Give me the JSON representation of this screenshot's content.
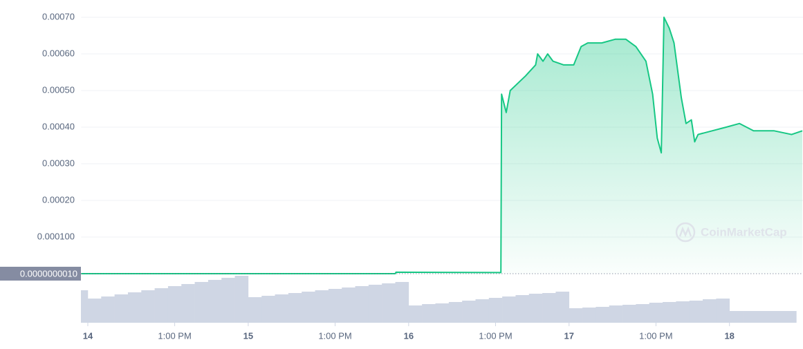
{
  "chart_data": {
    "type": "line",
    "watermark": "CoinMarketCap",
    "xlim": [
      -1,
      107
    ],
    "xticks": [
      {
        "value": 0,
        "label": "14"
      },
      {
        "value": 13,
        "label": "1:00 PM"
      },
      {
        "value": 24,
        "label": "15"
      },
      {
        "value": 37,
        "label": "1:00 PM"
      },
      {
        "value": 48,
        "label": "16"
      },
      {
        "value": 61,
        "label": "1:00 PM"
      },
      {
        "value": 72,
        "label": "17"
      },
      {
        "value": 85,
        "label": "1:00 PM"
      },
      {
        "value": 96,
        "label": "18"
      }
    ],
    "ylim": [
      0,
      0.00075
    ],
    "yticks": [
      {
        "value": 0.0001,
        "label": "0.000100"
      },
      {
        "value": 0.0002,
        "label": "0.00020"
      },
      {
        "value": 0.0003,
        "label": "0.00030"
      },
      {
        "value": 0.0004,
        "label": "0.00040"
      },
      {
        "value": 0.0005,
        "label": "0.00050"
      },
      {
        "value": 0.0006,
        "label": "0.00060"
      },
      {
        "value": 0.0007,
        "label": "0.00070"
      }
    ],
    "y_marker": {
      "value": 1e-09,
      "label": "0.0000000010"
    },
    "grid": true,
    "price": {
      "color": "#16c784",
      "x": [
        -1,
        46,
        46.1,
        61.8,
        61.9,
        62.6,
        63.2,
        65.5,
        67,
        67.3,
        68.1,
        68.8,
        69.6,
        71.2,
        72.7,
        73.8,
        74.8,
        76.9,
        78.9,
        80.5,
        82,
        83.5,
        84.5,
        85.2,
        85.8,
        86.2,
        87,
        87.7,
        88.8,
        89.5,
        90.3,
        90.8,
        91.3,
        93.4,
        95.5,
        97.5,
        99.6,
        102.7,
        105.3,
        106.9
      ],
      "values": [
        1e-09,
        1e-09,
        4e-06,
        3e-06,
        0.00049,
        0.00044,
        0.0005,
        0.00054,
        0.00057,
        0.0006,
        0.00058,
        0.0006,
        0.00058,
        0.00057,
        0.00057,
        0.00062,
        0.00063,
        0.00063,
        0.00064,
        0.00064,
        0.00062,
        0.00058,
        0.00049,
        0.00037,
        0.00033,
        0.0007,
        0.00067,
        0.00063,
        0.00048,
        0.00041,
        0.00042,
        0.00036,
        0.00038,
        0.00039,
        0.0004,
        0.00041,
        0.00039,
        0.00039,
        0.00038,
        0.00039
      ]
    },
    "volume": {
      "color": "#cfd6e4",
      "vlim": [
        0,
        72
      ],
      "x": [
        -1,
        1,
        3,
        5,
        7,
        9,
        11,
        13,
        15,
        17,
        19,
        21,
        23,
        25,
        27,
        29,
        31,
        33,
        35,
        37,
        39,
        41,
        43,
        45,
        47,
        49,
        51,
        53,
        55,
        57,
        59,
        61,
        63,
        65,
        67,
        69,
        71,
        73,
        75,
        77,
        79,
        81,
        83,
        85,
        87,
        89,
        91,
        93,
        95,
        97,
        99,
        101,
        103,
        105
      ],
      "values": [
        47,
        35,
        38,
        41,
        44,
        47,
        50,
        53,
        56,
        59,
        62,
        65,
        68,
        37,
        39,
        41,
        43,
        45,
        47,
        49,
        51,
        53,
        55,
        57,
        59,
        25,
        27,
        28,
        30,
        32,
        34,
        36,
        38,
        40,
        42,
        43,
        45,
        21,
        22,
        23,
        25,
        26,
        27,
        29,
        30,
        31,
        32,
        34,
        35,
        17,
        17,
        17,
        17,
        17
      ]
    }
  }
}
